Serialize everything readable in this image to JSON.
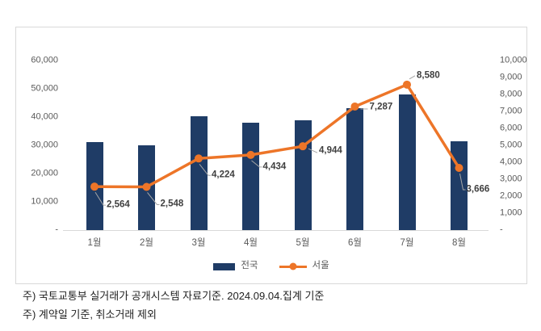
{
  "chart_data": {
    "type": "bar+line combo",
    "categories": [
      "1월",
      "2월",
      "3월",
      "4월",
      "5월",
      "6월",
      "7월",
      "8월"
    ],
    "series": [
      {
        "name": "전국",
        "type": "bar",
        "axis": "left",
        "color": "#1f3c66",
        "values": [
          31200,
          30000,
          40300,
          38100,
          39000,
          43100,
          47900,
          31300
        ]
      },
      {
        "name": "서울",
        "type": "line",
        "axis": "right",
        "color": "#ed7528",
        "values": [
          2564,
          2548,
          4224,
          4434,
          4944,
          7287,
          8580,
          3666
        ],
        "data_labels": [
          "2,564",
          "2,548",
          "4,224",
          "4,434",
          "4,944",
          "7,287",
          "8,580",
          "3,666"
        ]
      }
    ],
    "left_axis": {
      "min": 0,
      "max": 60000,
      "step": 10000,
      "tick_labels_top_to_bottom": [
        "60,000",
        "50,000",
        "40,000",
        "30,000",
        "20,000",
        "10,000",
        "-"
      ]
    },
    "right_axis": {
      "min": 0,
      "max": 10000,
      "step": 1000,
      "tick_labels_top_to_bottom": [
        "10,000",
        "9,000",
        "8,000",
        "7,000",
        "6,000",
        "5,000",
        "4,000",
        "3,000",
        "2,000",
        "1,000",
        "-"
      ]
    },
    "legend": {
      "position": "bottom-center",
      "entries": [
        "전국",
        "서울"
      ]
    },
    "grid": false,
    "title": ""
  },
  "colors": {
    "axis_text": "#595959",
    "data_label_text": "#3f3f3f",
    "leader_line": "#a6a6a6",
    "axis_line": "#d9d9d9",
    "panel_border": "#d9d9d9"
  },
  "footnotes": {
    "line1": "주) 국토교통부 실거래가 공개시스템 자료기준. 2024.09.04.집계 기준",
    "line2": "주) 계약일 기준, 취소거래 제외"
  }
}
